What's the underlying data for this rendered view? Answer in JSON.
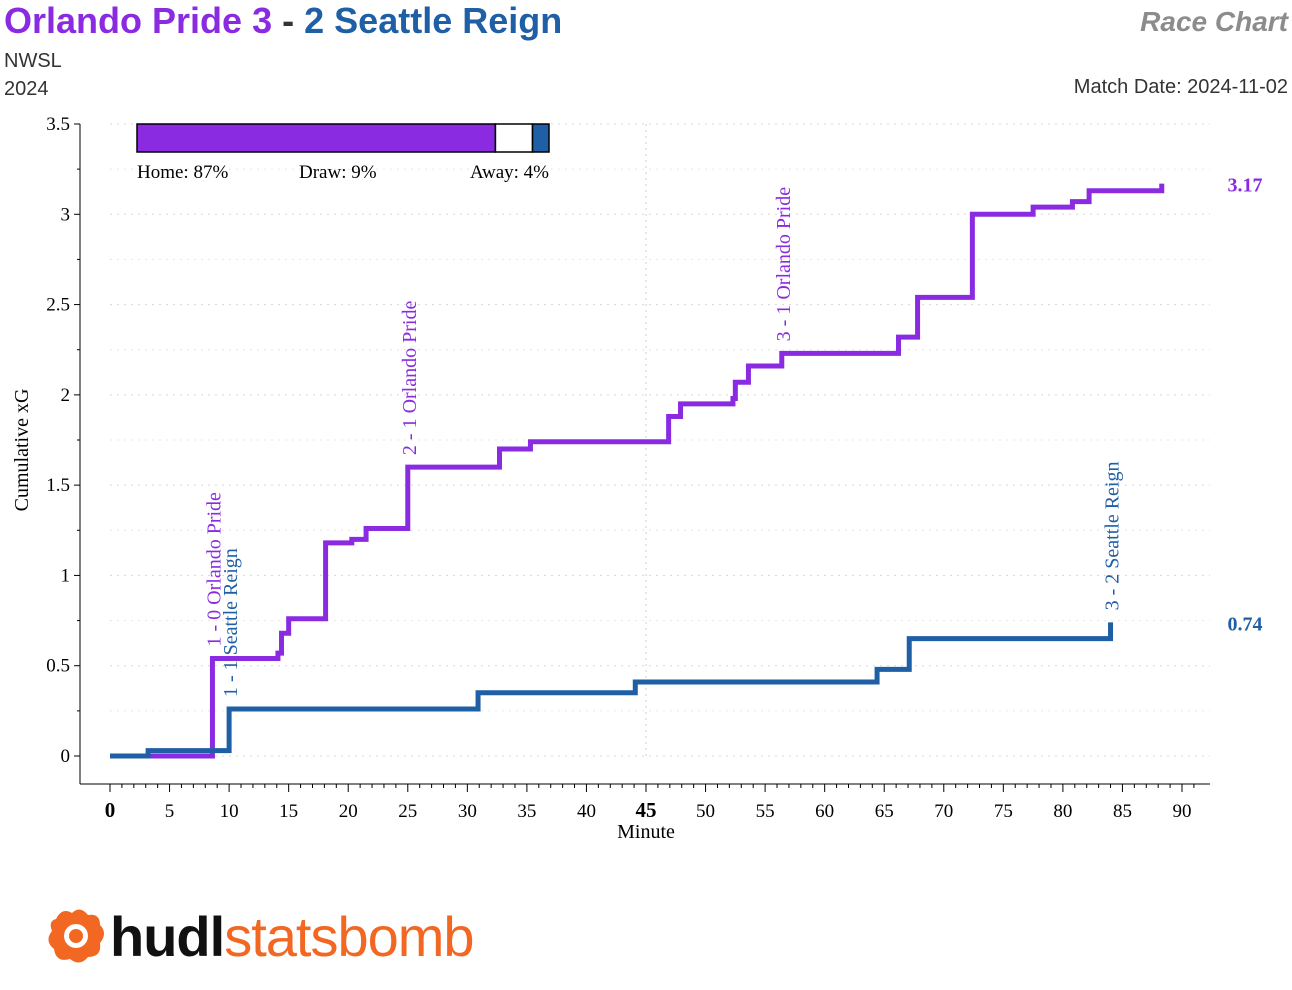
{
  "header": {
    "home_team": "Orlando Pride",
    "home_score": "3",
    "separator": "-",
    "away_score": "2",
    "away_team": "Seattle Reign",
    "competition": "NWSL",
    "season": "2024",
    "chart_kind": "Race Chart",
    "match_date": "Match Date: 2024-11-02"
  },
  "colors": {
    "home": "#8a2be2",
    "away": "#1f5fa6",
    "logo_orange": "#f26722"
  },
  "logo": {
    "part1": "hudl",
    "part2": "statsbomb",
    "icon": "hudl-bomb-icon"
  },
  "chart_data": {
    "type": "line",
    "xlabel": "Minute",
    "ylabel": "Cumulative xG",
    "xlim": [
      0,
      92
    ],
    "ylim": [
      0,
      3.5
    ],
    "x_ticks": [
      "0",
      "5",
      "10",
      "15",
      "20",
      "25",
      "30",
      "35",
      "40",
      "45",
      "50",
      "55",
      "60",
      "65",
      "70",
      "75",
      "80",
      "85",
      "90"
    ],
    "y_ticks": [
      "0",
      "0.5",
      "1",
      "1.5",
      "2",
      "2.5",
      "3",
      "3.5"
    ],
    "grid": "dotted horizontal and vertical gridlines",
    "probabilities": {
      "home": 87,
      "draw": 9,
      "away": 4,
      "home_label": "Home: 87%",
      "draw_label": "Draw: 9%",
      "away_label": "Away: 4%"
    },
    "series": [
      {
        "name": "Orlando Pride",
        "side": "home",
        "final_label": "3.17",
        "steps": [
          [
            0,
            0
          ],
          [
            3.5,
            0
          ],
          [
            8.6,
            0.54
          ],
          [
            14.1,
            0.57
          ],
          [
            14.4,
            0.68
          ],
          [
            15.0,
            0.76
          ],
          [
            18.1,
            1.18
          ],
          [
            20.3,
            1.2
          ],
          [
            21.5,
            1.26
          ],
          [
            25.0,
            1.6
          ],
          [
            32.7,
            1.7
          ],
          [
            35.3,
            1.74
          ],
          [
            46.9,
            1.88
          ],
          [
            47.9,
            1.95
          ],
          [
            52.3,
            1.98
          ],
          [
            52.5,
            2.07
          ],
          [
            53.6,
            2.16
          ],
          [
            56.4,
            2.23
          ],
          [
            66.2,
            2.32
          ],
          [
            67.8,
            2.54
          ],
          [
            72.4,
            3.0
          ],
          [
            77.5,
            3.04
          ],
          [
            80.8,
            3.07
          ],
          [
            82.2,
            3.13
          ],
          [
            88.3,
            3.17
          ]
        ]
      },
      {
        "name": "Seattle Reign",
        "side": "away",
        "final_label": "0.74",
        "steps": [
          [
            0,
            0
          ],
          [
            3.2,
            0.03
          ],
          [
            10.0,
            0.26
          ],
          [
            30.9,
            0.35
          ],
          [
            44.1,
            0.41
          ],
          [
            64.4,
            0.48
          ],
          [
            67.1,
            0.65
          ],
          [
            84.0,
            0.74
          ]
        ]
      }
    ],
    "goals": [
      {
        "minute": 8.6,
        "label": "1 - 0 Orlando Pride",
        "side": "home",
        "y": 0.54
      },
      {
        "minute": 10.0,
        "label": "1 - 1 Seattle Reign",
        "side": "away",
        "y": 0.26
      },
      {
        "minute": 25.0,
        "label": "2 - 1 Orlando Pride",
        "side": "home",
        "y": 1.6
      },
      {
        "minute": 56.4,
        "label": "3 - 1 Orlando Pride",
        "side": "home",
        "y": 2.23
      },
      {
        "minute": 84.0,
        "label": "3 - 2 Seattle Reign",
        "side": "away",
        "y": 0.74
      }
    ]
  }
}
